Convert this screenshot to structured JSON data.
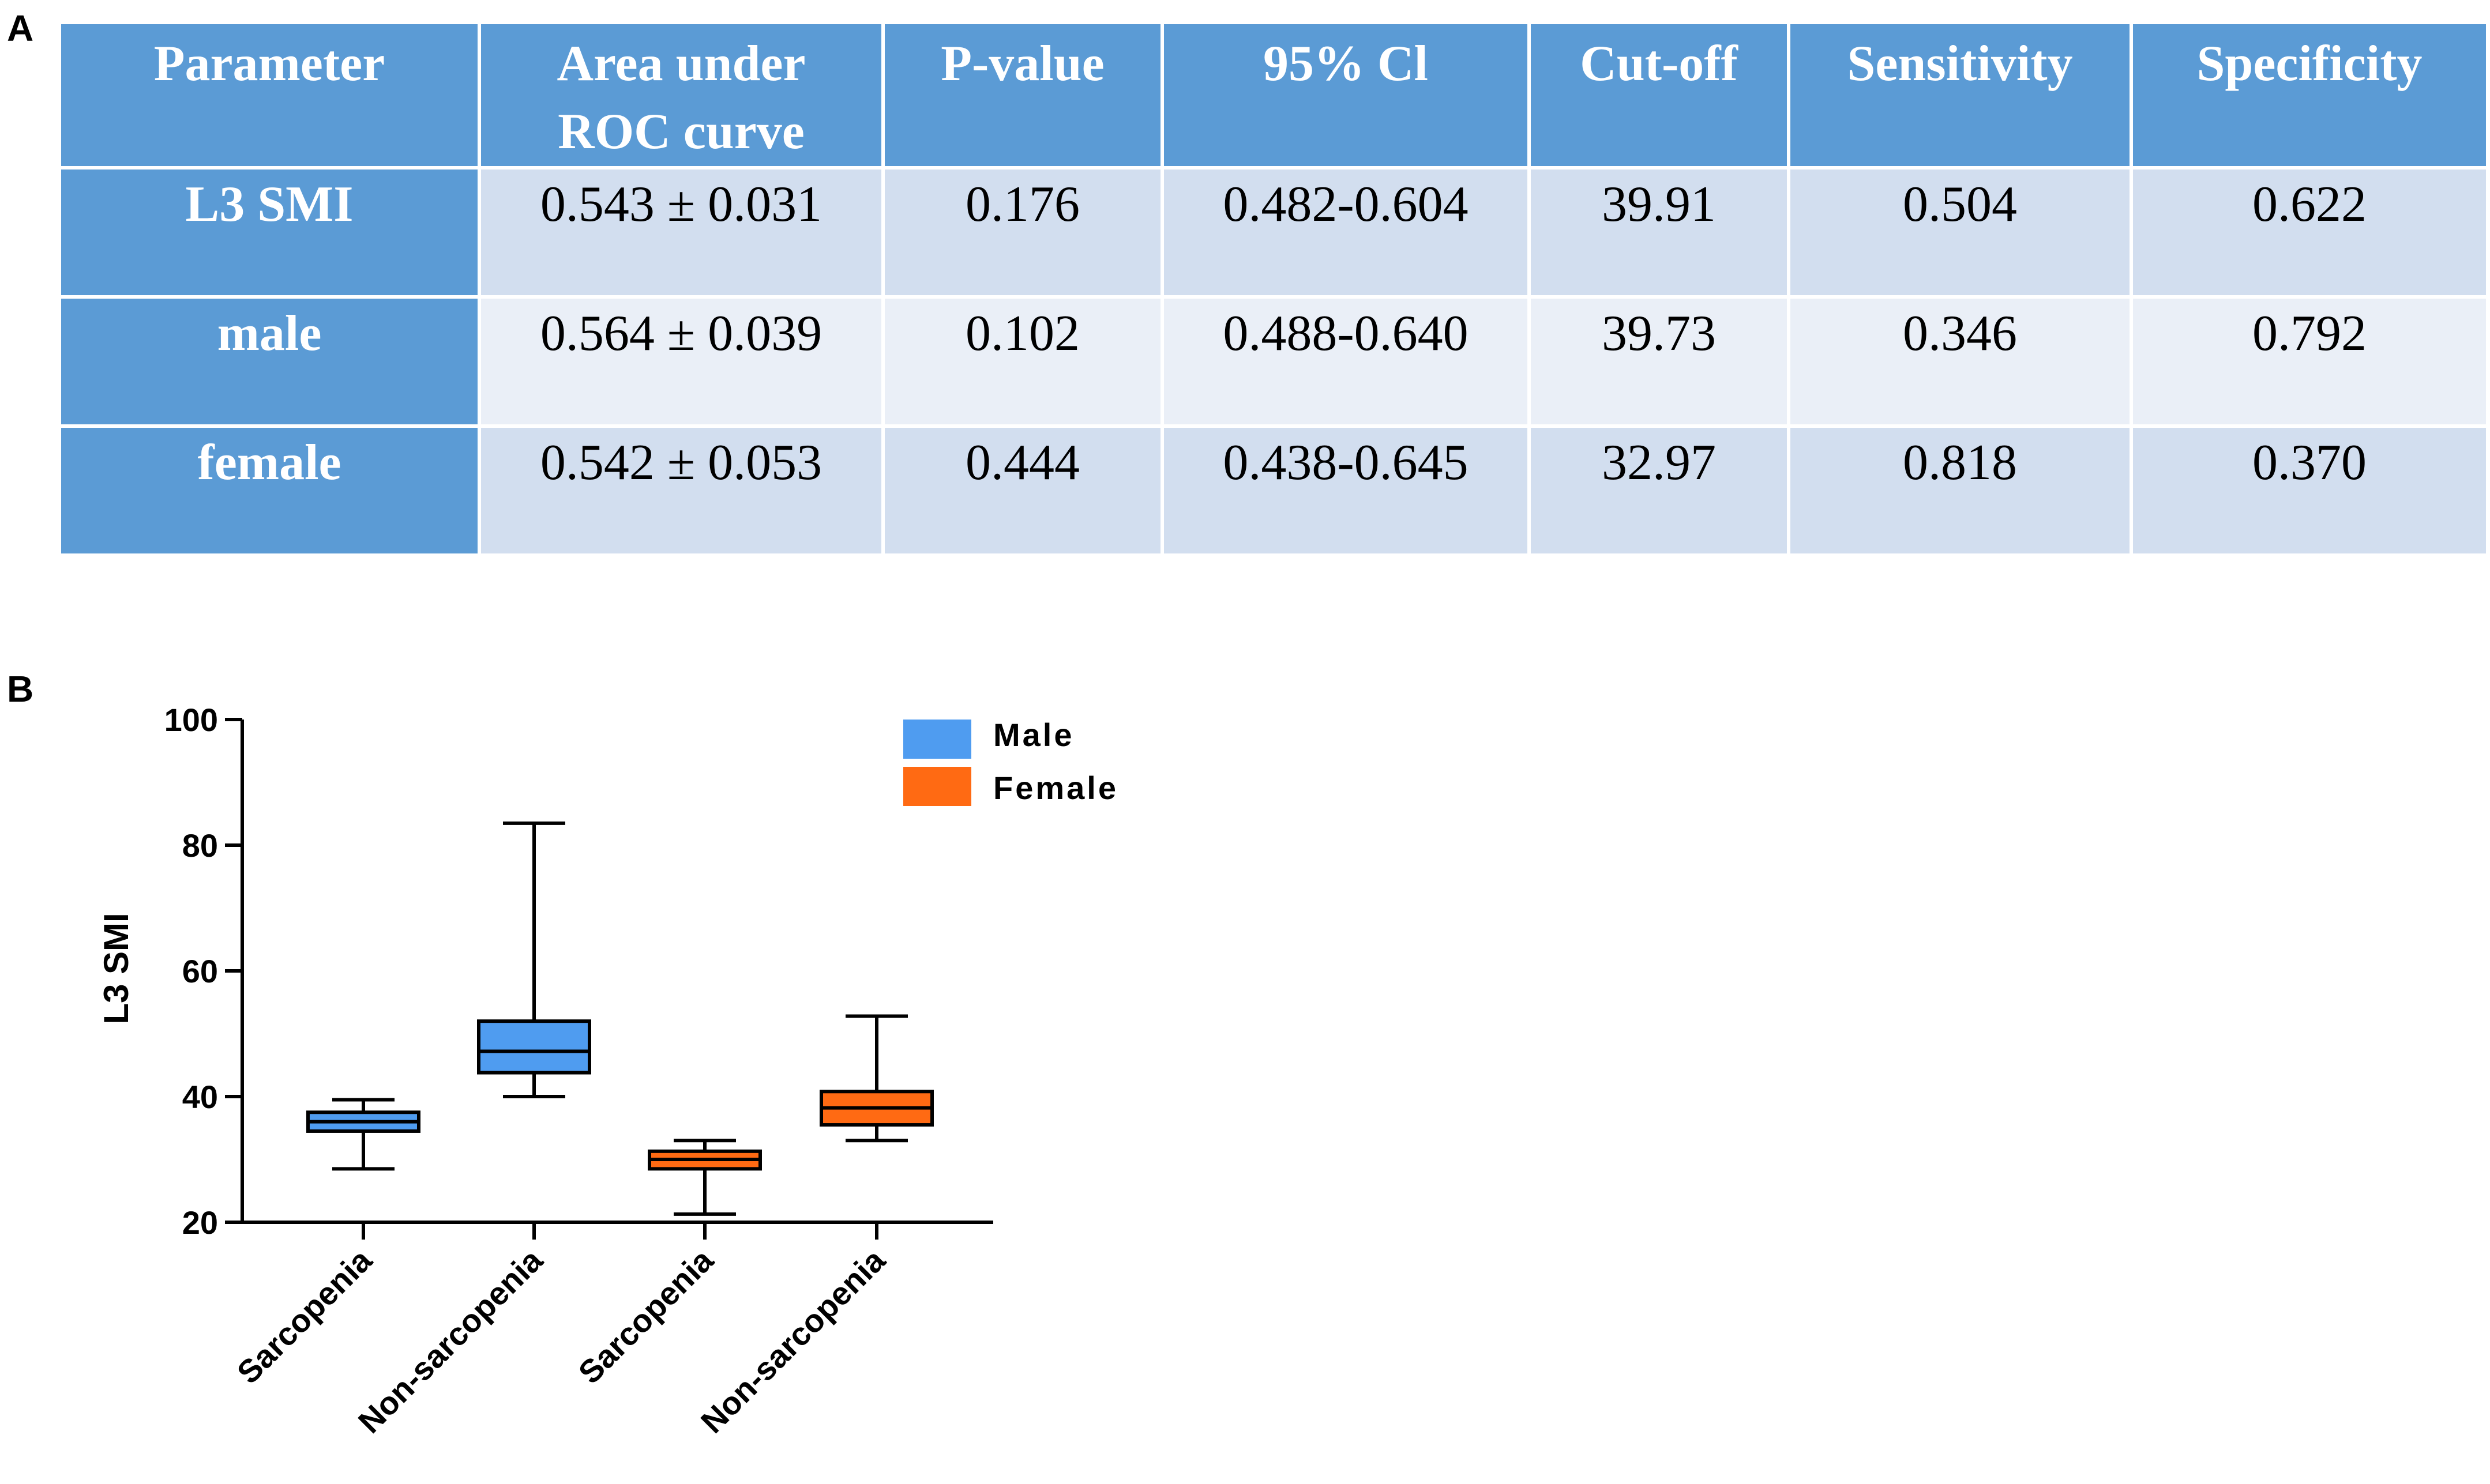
{
  "panels": {
    "a": "A",
    "b": "B"
  },
  "table": {
    "headers": [
      "Parameter",
      "Area under ROC curve",
      "P-value",
      "95% Cl",
      "Cut-off",
      "Sensitivity",
      "Specificity"
    ],
    "header_lines": [
      [
        "Parameter"
      ],
      [
        "Area under",
        "ROC curve"
      ],
      [
        "P-value"
      ],
      [
        "95% Cl"
      ],
      [
        "Cut-off"
      ],
      [
        "Sensitivity"
      ],
      [
        "Specificity"
      ]
    ],
    "rows": [
      [
        "L3 SMI",
        "0.543 ± 0.031",
        "0.176",
        "0.482-0.604",
        "39.91",
        "0.504",
        "0.622"
      ],
      [
        "male",
        "0.564 ± 0.039",
        "0.102",
        "0.488-0.640",
        "39.73",
        "0.346",
        "0.792"
      ],
      [
        "female",
        "0.542 ± 0.053",
        "0.444",
        "0.438-0.645",
        "32.97",
        "0.818",
        "0.370"
      ]
    ],
    "colors": {
      "header": "#5b9bd5",
      "row_dark": "#d2deef",
      "row_light": "#eaeff7"
    }
  },
  "chart_data": {
    "type": "box",
    "title": "",
    "xlabel": "",
    "ylabel": "L3 SMI",
    "ylim": [
      20,
      100
    ],
    "yticks": [
      20,
      40,
      60,
      80,
      100
    ],
    "categories": [
      "Sarcopenia",
      "Non-sarcopenia",
      "Sarcopenia",
      "Non-sarcopenia"
    ],
    "legend": {
      "placement": "top-right",
      "entries": [
        {
          "name": "Male",
          "color": "#4f9cf0"
        },
        {
          "name": "Female",
          "color": "#ff6a13"
        }
      ]
    },
    "boxes": [
      {
        "category": "Sarcopenia",
        "group": "Male",
        "min": 28.5,
        "q1": 34.5,
        "median": 36,
        "q3": 37.5,
        "max": 39.5,
        "color": "#4f9cf0"
      },
      {
        "category": "Non-sarcopenia",
        "group": "Male",
        "min": 40,
        "q1": 43.8,
        "median": 47.2,
        "q3": 52,
        "max": 83.5,
        "color": "#4f9cf0"
      },
      {
        "category": "Sarcopenia",
        "group": "Female",
        "min": 21.3,
        "q1": 28.5,
        "median": 30,
        "q3": 31.3,
        "max": 33,
        "color": "#ff6a13"
      },
      {
        "category": "Non-sarcopenia",
        "group": "Female",
        "min": 33,
        "q1": 35.5,
        "median": 38.2,
        "q3": 40.8,
        "max": 52.8,
        "color": "#ff6a13"
      }
    ]
  }
}
